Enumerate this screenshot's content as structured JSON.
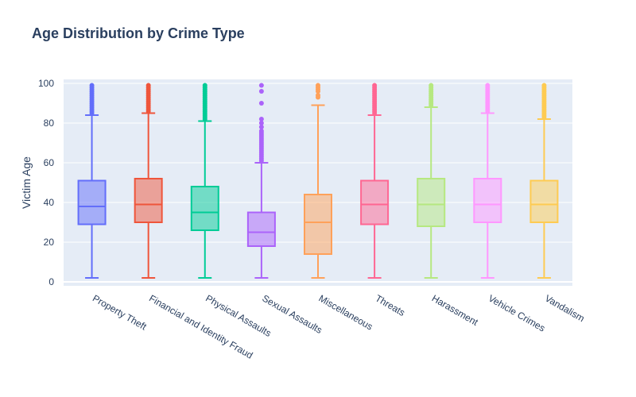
{
  "chart_data": {
    "type": "box",
    "title": "Age Distribution by Crime Type",
    "xlabel": "",
    "ylabel": "Victim Age",
    "ylim": [
      -2,
      102
    ],
    "yticks": [
      0,
      20,
      40,
      60,
      80,
      100
    ],
    "grid": true,
    "legend": "none",
    "categories": [
      "Property Theft",
      "Financial and Identity Fraud",
      "Physical Assaults",
      "Sexual Assaults",
      "Miscellaneous",
      "Threats",
      "Harassment",
      "Vehicle Crimes",
      "Vandalism"
    ],
    "colors": [
      "#636efa",
      "#ef553b",
      "#00cc96",
      "#ab63fa",
      "#ffa15a",
      "#ff6692",
      "#b6e880",
      "#ff97ff",
      "#fecb52"
    ],
    "boxes": [
      {
        "min": 2,
        "q1": 29,
        "median": 38,
        "q3": 51,
        "upper_fence": 84,
        "outliers": [
          85,
          86,
          87,
          88,
          89,
          90,
          91,
          92,
          93,
          94,
          95,
          96,
          97,
          98,
          99
        ]
      },
      {
        "min": 2,
        "q1": 30,
        "median": 39,
        "q3": 52,
        "upper_fence": 85,
        "outliers": [
          86,
          87,
          88,
          89,
          90,
          91,
          92,
          93,
          94,
          95,
          96,
          97,
          98,
          99
        ]
      },
      {
        "min": 2,
        "q1": 26,
        "median": 35,
        "q3": 48,
        "upper_fence": 81,
        "outliers": [
          82,
          83,
          84,
          85,
          86,
          87,
          88,
          89,
          90,
          91,
          92,
          93,
          94,
          95,
          96,
          97,
          98,
          99
        ]
      },
      {
        "min": 2,
        "q1": 18,
        "median": 25,
        "q3": 35,
        "upper_fence": 60,
        "outliers": [
          61,
          62,
          63,
          64,
          65,
          66,
          67,
          68,
          69,
          70,
          71,
          72,
          73,
          74,
          75,
          76,
          78,
          80,
          82,
          90,
          96,
          99
        ]
      },
      {
        "min": 2,
        "q1": 14,
        "median": 30,
        "q3": 44,
        "upper_fence": 89,
        "outliers": [
          93,
          94,
          96,
          97,
          98,
          99
        ]
      },
      {
        "min": 2,
        "q1": 29,
        "median": 39,
        "q3": 51,
        "upper_fence": 84,
        "outliers": [
          85,
          86,
          87,
          88,
          89,
          90,
          91,
          92,
          93,
          94,
          95,
          96,
          97,
          98,
          99
        ]
      },
      {
        "min": 2,
        "q1": 28,
        "median": 39,
        "q3": 52,
        "upper_fence": 88,
        "outliers": [
          89,
          90,
          91,
          92,
          93,
          94,
          95,
          96,
          97,
          98,
          99
        ]
      },
      {
        "min": 2,
        "q1": 30,
        "median": 39,
        "q3": 52,
        "upper_fence": 85,
        "outliers": [
          86,
          87,
          88,
          89,
          90,
          91,
          92,
          93,
          94,
          95,
          96,
          97,
          98,
          99
        ]
      },
      {
        "min": 2,
        "q1": 30,
        "median": 39,
        "q3": 51,
        "upper_fence": 82,
        "outliers": [
          83,
          84,
          85,
          86,
          87,
          88,
          89,
          90,
          91,
          92,
          93,
          94,
          95,
          96,
          97,
          98,
          99
        ]
      }
    ]
  }
}
